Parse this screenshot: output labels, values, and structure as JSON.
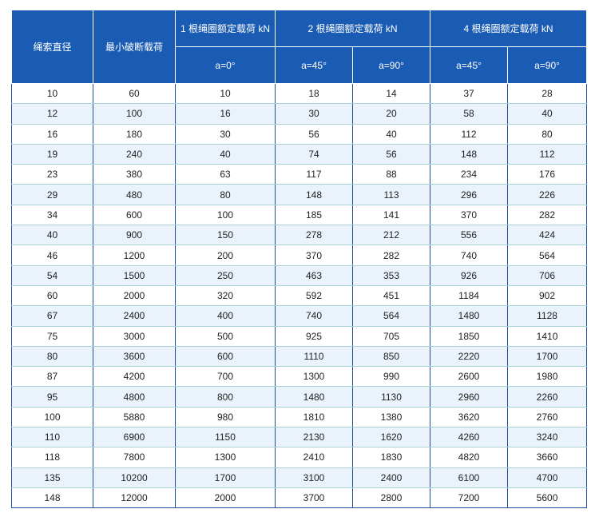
{
  "table": {
    "header": [
      "绳索直径",
      "最小破断载荷",
      "1 根绳圈额定载荷 kN",
      "2 根绳圈额定载荷 kN",
      "4 根绳圈额定载荷 kN"
    ],
    "subheader": [
      "a=0°",
      "a=45°",
      "a=90°",
      "a=45°",
      "a=90°"
    ],
    "rows": [
      [
        10,
        60,
        10,
        18,
        14,
        37,
        28
      ],
      [
        12,
        100,
        16,
        30,
        20,
        58,
        40
      ],
      [
        16,
        180,
        30,
        56,
        40,
        112,
        80
      ],
      [
        19,
        240,
        40,
        74,
        56,
        148,
        112
      ],
      [
        23,
        380,
        63,
        117,
        88,
        234,
        176
      ],
      [
        29,
        480,
        80,
        148,
        113,
        296,
        226
      ],
      [
        34,
        600,
        100,
        185,
        141,
        370,
        282
      ],
      [
        40,
        900,
        150,
        278,
        212,
        556,
        424
      ],
      [
        46,
        1200,
        200,
        370,
        282,
        740,
        564
      ],
      [
        54,
        1500,
        250,
        463,
        353,
        926,
        706
      ],
      [
        60,
        2000,
        320,
        592,
        451,
        1184,
        902
      ],
      [
        67,
        2400,
        400,
        740,
        564,
        1480,
        1128
      ],
      [
        75,
        3000,
        500,
        925,
        705,
        1850,
        1410
      ],
      [
        80,
        3600,
        600,
        1110,
        850,
        2220,
        1700
      ],
      [
        87,
        4200,
        700,
        1300,
        990,
        2600,
        1980
      ],
      [
        95,
        4800,
        800,
        1480,
        1130,
        2960,
        2260
      ],
      [
        100,
        5880,
        980,
        1810,
        1380,
        3620,
        2760
      ],
      [
        110,
        6900,
        1150,
        2130,
        1620,
        4260,
        3240
      ],
      [
        118,
        7800,
        1300,
        2410,
        1830,
        4820,
        3660
      ],
      [
        135,
        10200,
        1700,
        3100,
        2400,
        6100,
        4700
      ],
      [
        148,
        12000,
        2000,
        3700,
        2800,
        7200,
        5600
      ]
    ]
  }
}
